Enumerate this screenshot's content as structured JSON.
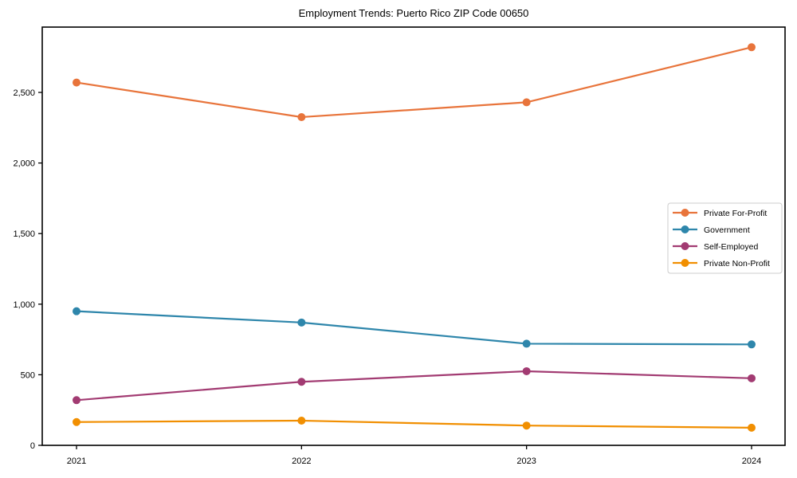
{
  "title": "Employment Trends: Puerto Rico ZIP Code 00650",
  "chart_data": {
    "type": "line",
    "title": "Employment Trends: Puerto Rico ZIP Code 00650",
    "x": [
      2021,
      2022,
      2023,
      2024
    ],
    "xtick_labels": [
      "2021",
      "2022",
      "2023",
      "2024"
    ],
    "yticks": [
      0,
      500,
      1000,
      1500,
      2000,
      2500
    ],
    "ytick_labels": [
      "0",
      "500",
      "1,000",
      "1,500",
      "2,000",
      "2,500"
    ],
    "ylim": [
      0,
      2960
    ],
    "grid": false,
    "marker": "circle",
    "legend_position": "middle-right",
    "legend_border_color": "#cccccc",
    "axis_color": "#000000",
    "background_color": "#ffffff",
    "series": [
      {
        "name": "Private For-Profit",
        "color": "#E8743B",
        "values": [
          2570,
          2325,
          2430,
          2820
        ]
      },
      {
        "name": "Government",
        "color": "#2E86AB",
        "values": [
          950,
          870,
          720,
          715
        ]
      },
      {
        "name": "Self-Employed",
        "color": "#A23B72",
        "values": [
          320,
          450,
          525,
          475
        ]
      },
      {
        "name": "Private Non-Profit",
        "color": "#F18F01",
        "values": [
          165,
          175,
          140,
          125
        ]
      }
    ]
  }
}
